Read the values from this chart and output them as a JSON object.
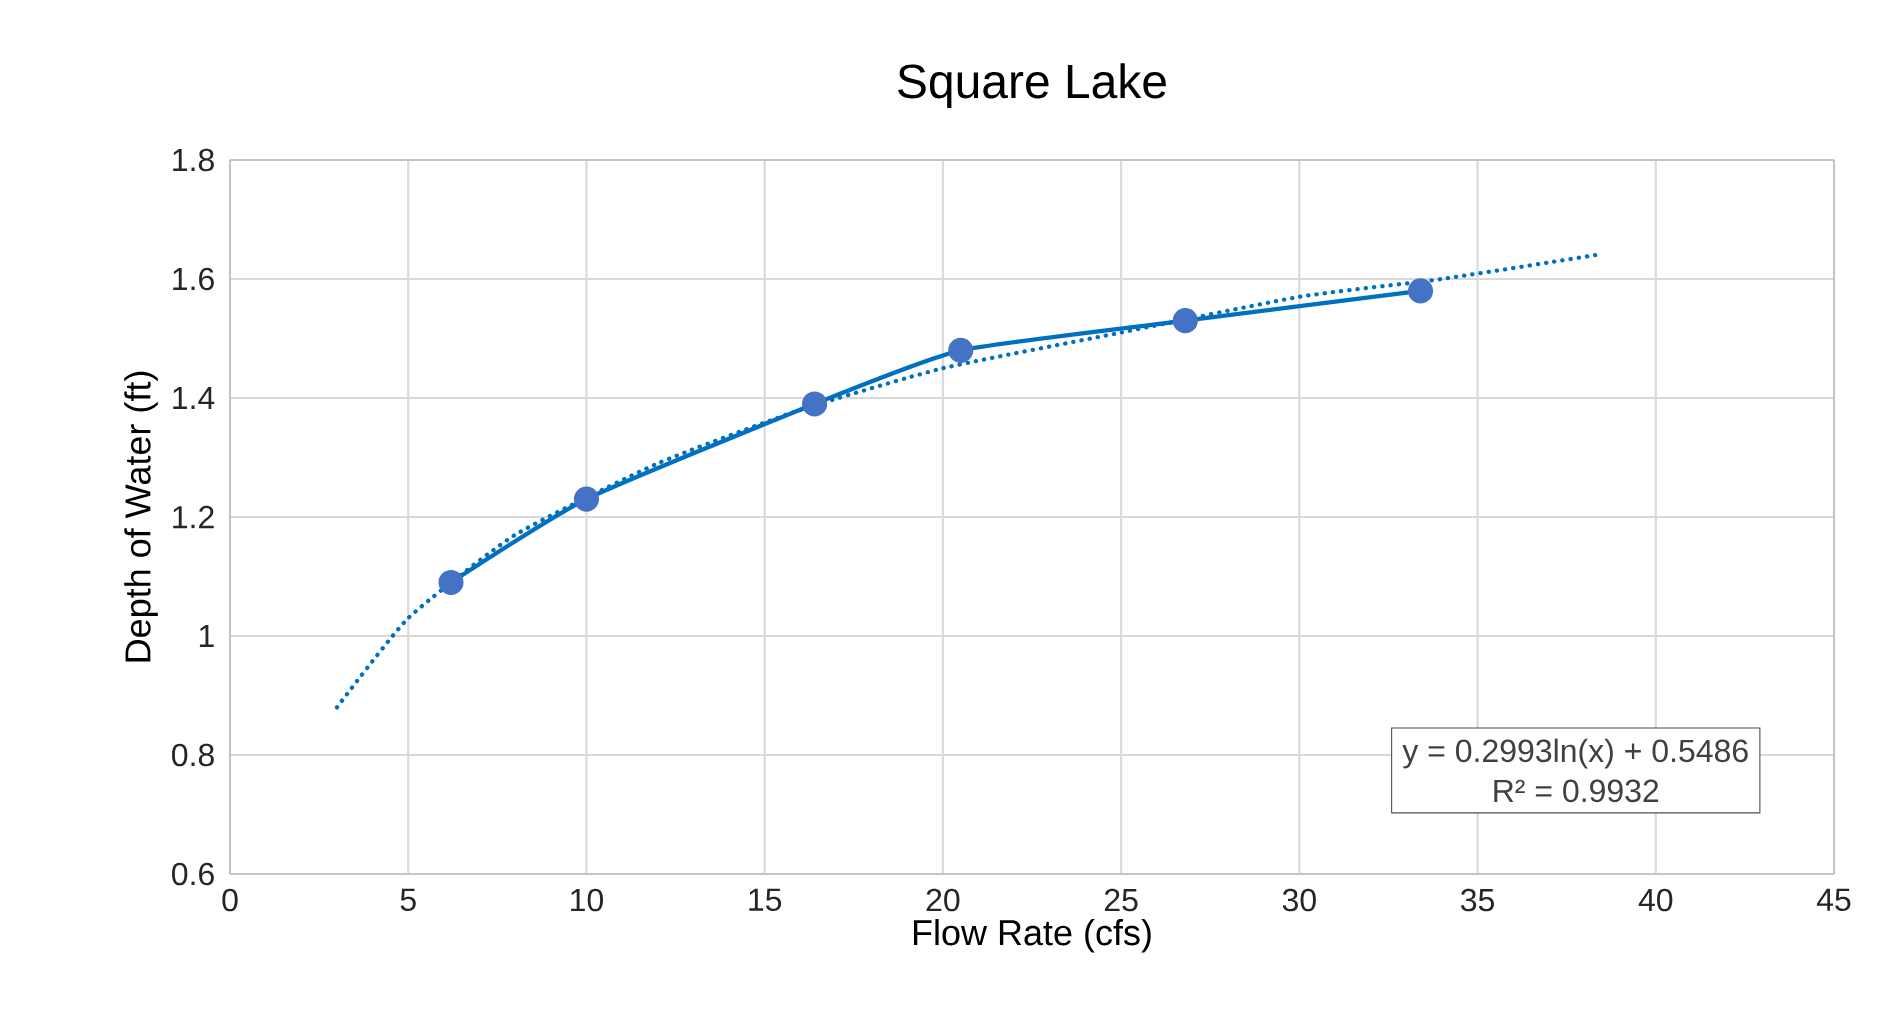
{
  "chart_data": {
    "type": "scatter",
    "title": "Square Lake",
    "xlabel": "Flow Rate (cfs)",
    "ylabel": "Depth of Water (ft)",
    "xlim": [
      0,
      45
    ],
    "xticks": [
      0,
      5,
      10,
      15,
      20,
      25,
      30,
      35,
      40,
      45
    ],
    "ylim": [
      0.6,
      1.8
    ],
    "yticks": [
      0.6,
      0.8,
      1,
      1.2,
      1.4,
      1.6,
      1.8
    ],
    "grid": true,
    "marker": "circle",
    "series": [
      {
        "type": "line",
        "color": "#0070c0",
        "line_style": "solid",
        "marker": "none",
        "x": [
          6.2,
          10,
          16.4,
          20.5,
          26.8,
          33.4
        ],
        "values": [
          1.09,
          1.23,
          1.39,
          1.48,
          1.53,
          1.58
        ]
      },
      {
        "type": "line",
        "color": "#0070c0",
        "line_style": "dotted",
        "marker": "none",
        "x": [
          3,
          5,
          8,
          12,
          16,
          20,
          25,
          30,
          34,
          38.3
        ],
        "values": [
          0.88,
          1.03,
          1.17,
          1.29,
          1.38,
          1.45,
          1.51,
          1.57,
          1.6,
          1.64
        ]
      },
      {
        "color": "#4472c4",
        "x": [
          6.2,
          10,
          16.4,
          20.5,
          26.8,
          33.4
        ],
        "values": [
          1.09,
          1.23,
          1.39,
          1.48,
          1.53,
          1.58
        ]
      }
    ],
    "annotations": [
      "y = 0.2993ln(x) + 0.5486",
      "R² = 0.9932"
    ]
  }
}
